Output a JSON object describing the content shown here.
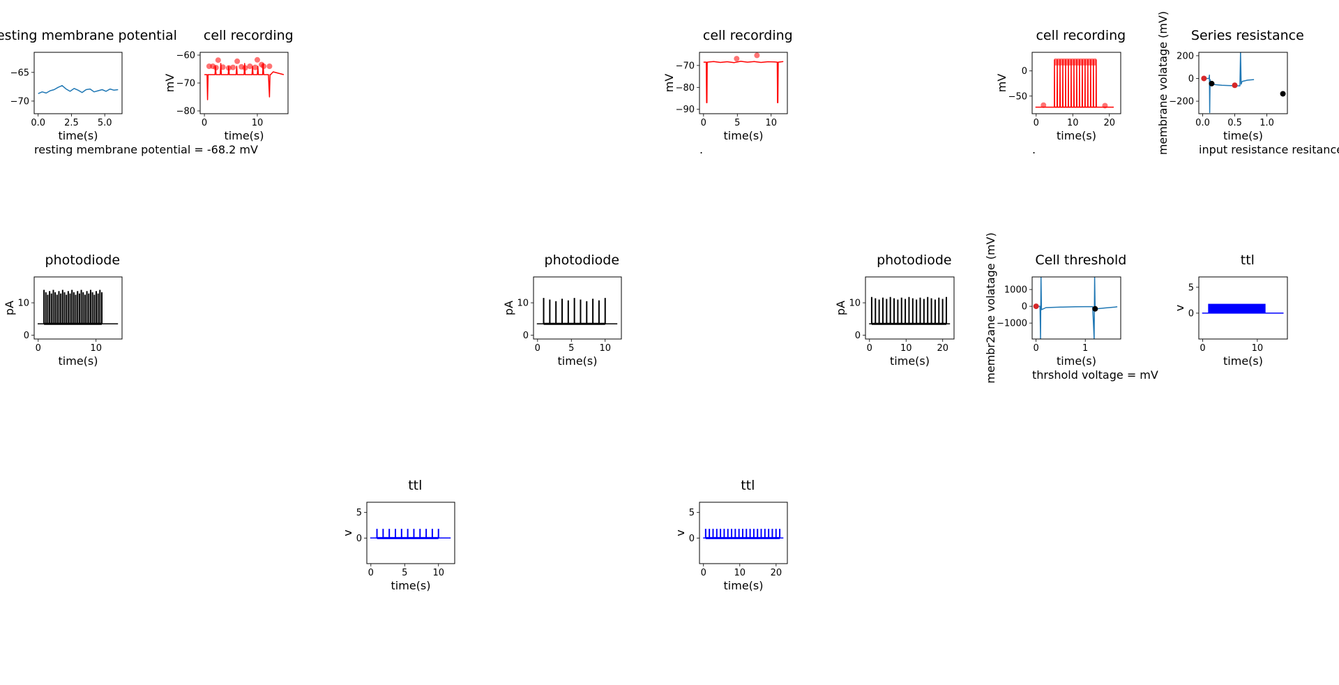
{
  "figure_title": "",
  "chart_data": [
    {
      "id": "rmp",
      "type": "line",
      "title": "Resting membrane potential",
      "xlabel": "time(s)",
      "ylabel": "",
      "xlim": [
        -0.3,
        6.3
      ],
      "ylim": [
        -72.2,
        -61.5
      ],
      "xticks": [
        0.0,
        2.5,
        5.0
      ],
      "xtick_labels": [
        "0.0",
        "2.5",
        "5.0"
      ],
      "yticks": [
        -70,
        -65
      ],
      "ytick_labels": [
        "−70",
        "−65"
      ],
      "series": [
        {
          "color": "#1f77b4",
          "x": [
            0,
            0.3,
            0.6,
            0.9,
            1.2,
            1.5,
            1.8,
            2.1,
            2.4,
            2.7,
            3.0,
            3.3,
            3.6,
            3.9,
            4.2,
            4.5,
            4.8,
            5.1,
            5.4,
            5.7,
            6.0
          ],
          "y": [
            -68.7,
            -68.4,
            -68.6,
            -68.2,
            -68.0,
            -67.6,
            -67.3,
            -67.9,
            -68.3,
            -67.8,
            -68.1,
            -68.5,
            -68.0,
            -67.9,
            -68.4,
            -68.2,
            -68.0,
            -68.3,
            -67.9,
            -68.1,
            -68.0
          ]
        }
      ],
      "annotation": "resting membrane potential = -68.2 mV"
    },
    {
      "id": "cell1",
      "type": "line",
      "title": "cell recording",
      "xlabel": "time(s)",
      "ylabel": "mV",
      "xlim": [
        -0.8,
        15.8
      ],
      "ylim": [
        -81,
        -59
      ],
      "xticks": [
        0,
        10
      ],
      "xtick_labels": [
        "0",
        "10"
      ],
      "yticks": [
        -80,
        -70,
        -60
      ],
      "ytick_labels": [
        "−80",
        "−70",
        "−60"
      ],
      "series": [
        {
          "color": "#ff0000",
          "x": [
            0,
            0.5,
            0.6,
            0.7,
            0.8,
            1.0,
            2.0,
            2.1,
            2.2,
            3.0,
            3.1,
            3.2,
            4.5,
            4.6,
            4.7,
            6.0,
            6.1,
            6.2,
            7.5,
            7.6,
            7.7,
            9.0,
            9.1,
            9.2,
            10.0,
            10.1,
            10.2,
            11.0,
            11.1,
            11.2,
            12.0,
            12.1,
            12.3,
            12.4,
            12.5,
            13.0,
            15.0
          ],
          "y": [
            -67,
            -67,
            -76,
            -67,
            -67,
            -67,
            -67,
            -64,
            -67,
            -67,
            -63,
            -67,
            -67,
            -64,
            -67,
            -67,
            -64,
            -67,
            -67,
            -63,
            -67,
            -67,
            -64,
            -67,
            -67,
            -64,
            -67,
            -67,
            -63,
            -67,
            -67,
            -67,
            -75,
            -67,
            -67,
            -66,
            -67
          ]
        }
      ],
      "markers": [
        {
          "x": 0.9,
          "y": -64.0
        },
        {
          "x": 1.6,
          "y": -64.0
        },
        {
          "x": 2.2,
          "y": -64.5
        },
        {
          "x": 2.6,
          "y": -61.8
        },
        {
          "x": 3.5,
          "y": -64.3
        },
        {
          "x": 4.6,
          "y": -64.6
        },
        {
          "x": 5.4,
          "y": -64.4
        },
        {
          "x": 6.2,
          "y": -62.2
        },
        {
          "x": 7.0,
          "y": -64.2
        },
        {
          "x": 7.7,
          "y": -64.6
        },
        {
          "x": 8.6,
          "y": -64.0
        },
        {
          "x": 9.6,
          "y": -64.4
        },
        {
          "x": 10.0,
          "y": -61.7
        },
        {
          "x": 10.8,
          "y": -63.4
        },
        {
          "x": 11.2,
          "y": -64.0
        },
        {
          "x": 12.3,
          "y": -64.0
        }
      ],
      "marker_color": "#ff0000"
    },
    {
      "id": "cell2",
      "type": "line",
      "title": "cell recording",
      "xlabel": "time(s)",
      "ylabel": "mV",
      "xlim": [
        -0.6,
        12.4
      ],
      "ylim": [
        -92,
        -64
      ],
      "xticks": [
        0,
        5,
        10
      ],
      "xtick_labels": [
        "0",
        "5",
        "10"
      ],
      "yticks": [
        -90,
        -80,
        -70
      ],
      "ytick_labels": [
        "−90",
        "−80",
        "−70"
      ],
      "series": [
        {
          "color": "#ff0000",
          "x": [
            0,
            0.4,
            0.45,
            0.5,
            0.55,
            1.5,
            2.5,
            3.5,
            4.5,
            5.5,
            6.5,
            7.5,
            8.5,
            9.5,
            10.5,
            10.9,
            10.95,
            11.0,
            11.05,
            11.8
          ],
          "y": [
            -68.5,
            -68.5,
            -87,
            -87,
            -68.5,
            -68.2,
            -68.6,
            -68.3,
            -68.7,
            -68.1,
            -68.5,
            -68.2,
            -68.6,
            -68.3,
            -68.4,
            -68.5,
            -87,
            -87,
            -68.5,
            -68.2
          ]
        }
      ],
      "markers": [
        {
          "x": 4.9,
          "y": -66.9
        },
        {
          "x": 7.9,
          "y": -65.4
        }
      ],
      "marker_color": "#ff0000",
      "annotation": "."
    },
    {
      "id": "cell3",
      "type": "line",
      "title": "cell recording",
      "xlabel": "time(s)",
      "ylabel": "mV",
      "xlim": [
        -1.1,
        23.1
      ],
      "ylim": [
        -85,
        37
      ],
      "xticks": [
        0,
        10,
        20
      ],
      "xtick_labels": [
        "0",
        "10",
        "20"
      ],
      "yticks": [
        -50,
        0
      ],
      "ytick_labels": [
        "−50",
        "0"
      ],
      "spikes": {
        "start": 5.0,
        "end": 16.4,
        "count": 16,
        "base": -72,
        "peak": 22,
        "color": "#ff0000"
      },
      "series": [
        {
          "color": "#ff0000",
          "x": [
            -0.2,
            21.2
          ],
          "y": [
            -72,
            -72
          ]
        }
      ],
      "markers": [
        {
          "x": 2.0,
          "y": -68
        },
        {
          "x": 18.8,
          "y": -69
        }
      ],
      "marker_color": "#ff0000",
      "annotation": "."
    },
    {
      "id": "series_res",
      "type": "line",
      "title": "Series resistance",
      "xlabel": "time(s)",
      "ylabel": "membrane volatage (mV)",
      "xlim": [
        -0.06,
        1.32
      ],
      "ylim": [
        -310,
        230
      ],
      "xticks": [
        0.0,
        0.5,
        1.0
      ],
      "xtick_labels": [
        "0.0",
        "0.5",
        "1.0"
      ],
      "yticks": [
        -200,
        0,
        200
      ],
      "ytick_labels": [
        "−200",
        "0",
        "200"
      ],
      "series": [
        {
          "color": "#1f77b4",
          "x": [
            0,
            0.1,
            0.105,
            0.11,
            0.115,
            0.13,
            0.2,
            0.3,
            0.4,
            0.5,
            0.58,
            0.59,
            0.6,
            0.61,
            0.62,
            0.7,
            0.8
          ],
          "y": [
            0,
            0,
            30,
            -300,
            -10,
            -45,
            -55,
            -60,
            -62,
            -64,
            -65,
            230,
            -50,
            -30,
            -25,
            -15,
            -10
          ]
        }
      ],
      "markers": [
        {
          "x": 0.02,
          "y": 0,
          "color": "#d62728"
        },
        {
          "x": 0.5,
          "y": -60,
          "color": "#d62728"
        },
        {
          "x": 0.14,
          "y": -45,
          "color": "#000000"
        },
        {
          "x": 1.25,
          "y": -135,
          "color": "#000000"
        }
      ],
      "annotation": "input resistance resitance ="
    },
    {
      "id": "pd1",
      "type": "line",
      "title": "photodiode",
      "xlabel": "time(s)",
      "ylabel": "pA",
      "xlim": [
        -0.7,
        14.5
      ],
      "ylim": [
        -1.2,
        18
      ],
      "xticks": [
        0,
        10
      ],
      "xtick_labels": [
        "0",
        "10"
      ],
      "yticks": [
        0,
        10
      ],
      "ytick_labels": [
        "0",
        "10"
      ],
      "pulses": {
        "start": 1.0,
        "end": 11.0,
        "count": 32,
        "base": 3.5,
        "peak": 14.0,
        "color": "#000000",
        "peak_jitter": 1.5
      },
      "series": [
        {
          "color": "#000000",
          "x": [
            -0.1,
            13.8
          ],
          "y": [
            3.5,
            3.5
          ]
        }
      ]
    },
    {
      "id": "pd2",
      "type": "line",
      "title": "photodiode",
      "xlabel": "time(s)",
      "ylabel": "pA",
      "xlim": [
        -0.6,
        12.4
      ],
      "ylim": [
        -1.2,
        18
      ],
      "xticks": [
        0,
        5,
        10
      ],
      "xtick_labels": [
        "0",
        "5",
        "10"
      ],
      "yticks": [
        0,
        10
      ],
      "ytick_labels": [
        "0",
        "10"
      ],
      "pulses": {
        "start": 0.9,
        "end": 10.0,
        "count": 11,
        "base": 3.5,
        "peak": 11.5,
        "color": "#000000",
        "peak_jitter": 1.0
      },
      "series": [
        {
          "color": "#000000",
          "x": [
            -0.1,
            11.8
          ],
          "y": [
            3.5,
            3.5
          ]
        }
      ]
    },
    {
      "id": "pd3",
      "type": "line",
      "title": "photodiode",
      "xlabel": "time(s)",
      "ylabel": "pA",
      "xlim": [
        -1.1,
        23.1
      ],
      "ylim": [
        -1.2,
        18
      ],
      "xticks": [
        0,
        10,
        20
      ],
      "xtick_labels": [
        "0",
        "10",
        "20"
      ],
      "yticks": [
        0,
        10
      ],
      "ytick_labels": [
        "0",
        "10"
      ],
      "pulses": {
        "start": 0.6,
        "end": 21.0,
        "count": 21,
        "base": 3.5,
        "peak": 11.8,
        "color": "#000000",
        "peak_jitter": 0.8
      },
      "series": [
        {
          "color": "#000000",
          "x": [
            -0.1,
            22.0
          ],
          "y": [
            3.5,
            3.5
          ]
        }
      ]
    },
    {
      "id": "threshold",
      "type": "line",
      "title": "Cell threshold",
      "xlabel": "time(s)",
      "ylabel": "membr2ane volatage (mV)",
      "xlim": [
        -0.08,
        1.72
      ],
      "ylim": [
        -1950,
        1750
      ],
      "xticks": [
        0,
        1
      ],
      "xtick_labels": [
        "0",
        "1"
      ],
      "yticks": [
        -1000,
        0,
        1000
      ],
      "ytick_labels": [
        "−1000",
        "0",
        "1000"
      ],
      "series": [
        {
          "color": "#1f77b4",
          "x": [
            0,
            0.08,
            0.09,
            0.1,
            0.11,
            0.2,
            0.5,
            0.8,
            1.0,
            1.15,
            1.18,
            1.19,
            1.2,
            1.22,
            1.4,
            1.6,
            1.65
          ],
          "y": [
            0,
            0,
            -1950,
            1750,
            -200,
            -80,
            -50,
            -30,
            -20,
            -20,
            -1950,
            1750,
            -200,
            -150,
            -100,
            -50,
            -30
          ]
        }
      ],
      "markers": [
        {
          "x": 0.0,
          "y": 0,
          "color": "#d62728"
        },
        {
          "x": 1.2,
          "y": -150,
          "color": "#000000"
        }
      ],
      "annotation": "thrshold voltage =  mV"
    },
    {
      "id": "ttl1",
      "type": "line",
      "title": "ttl",
      "xlabel": "time(s)",
      "ylabel": "v",
      "xlim": [
        -0.7,
        15.5
      ],
      "ylim": [
        -5,
        7
      ],
      "xticks": [
        0,
        10
      ],
      "xtick_labels": [
        "0",
        "10"
      ],
      "yticks": [
        0,
        5
      ],
      "ytick_labels": [
        "0",
        "5"
      ],
      "block": {
        "x0": 1.0,
        "x1": 11.5,
        "level": 1.8,
        "color": "#0000ff"
      },
      "series": [
        {
          "color": "#0000ff",
          "x": [
            -0.1,
            14.8
          ],
          "y": [
            0,
            0
          ]
        }
      ]
    },
    {
      "id": "ttl2",
      "type": "line",
      "title": "ttl",
      "xlabel": "time(s)",
      "ylabel": "v",
      "xlim": [
        -0.6,
        12.4
      ],
      "ylim": [
        -5,
        7
      ],
      "xticks": [
        0,
        5,
        10
      ],
      "xtick_labels": [
        "0",
        "5",
        "10"
      ],
      "yticks": [
        0,
        5
      ],
      "ytick_labels": [
        "0",
        "5"
      ],
      "pulses": {
        "start": 0.9,
        "end": 10.0,
        "count": 11,
        "base": 0,
        "peak": 1.8,
        "color": "#0000ff",
        "peak_jitter": 0
      },
      "series": [
        {
          "color": "#0000ff",
          "x": [
            -0.1,
            11.8
          ],
          "y": [
            0,
            0
          ]
        }
      ]
    },
    {
      "id": "ttl3",
      "type": "line",
      "title": "ttl",
      "xlabel": "time(s)",
      "ylabel": "v",
      "xlim": [
        -1.1,
        23.1
      ],
      "ylim": [
        -5,
        7
      ],
      "xticks": [
        0,
        10,
        20
      ],
      "xtick_labels": [
        "0",
        "10",
        "20"
      ],
      "yticks": [
        0,
        5
      ],
      "ytick_labels": [
        "0",
        "5"
      ],
      "pulses": {
        "start": 0.6,
        "end": 21.0,
        "count": 21,
        "base": 0,
        "peak": 1.8,
        "color": "#0000ff",
        "peak_jitter": 0
      },
      "series": [
        {
          "color": "#0000ff",
          "x": [
            -0.1,
            22.0
          ],
          "y": [
            0,
            0
          ]
        }
      ]
    }
  ]
}
